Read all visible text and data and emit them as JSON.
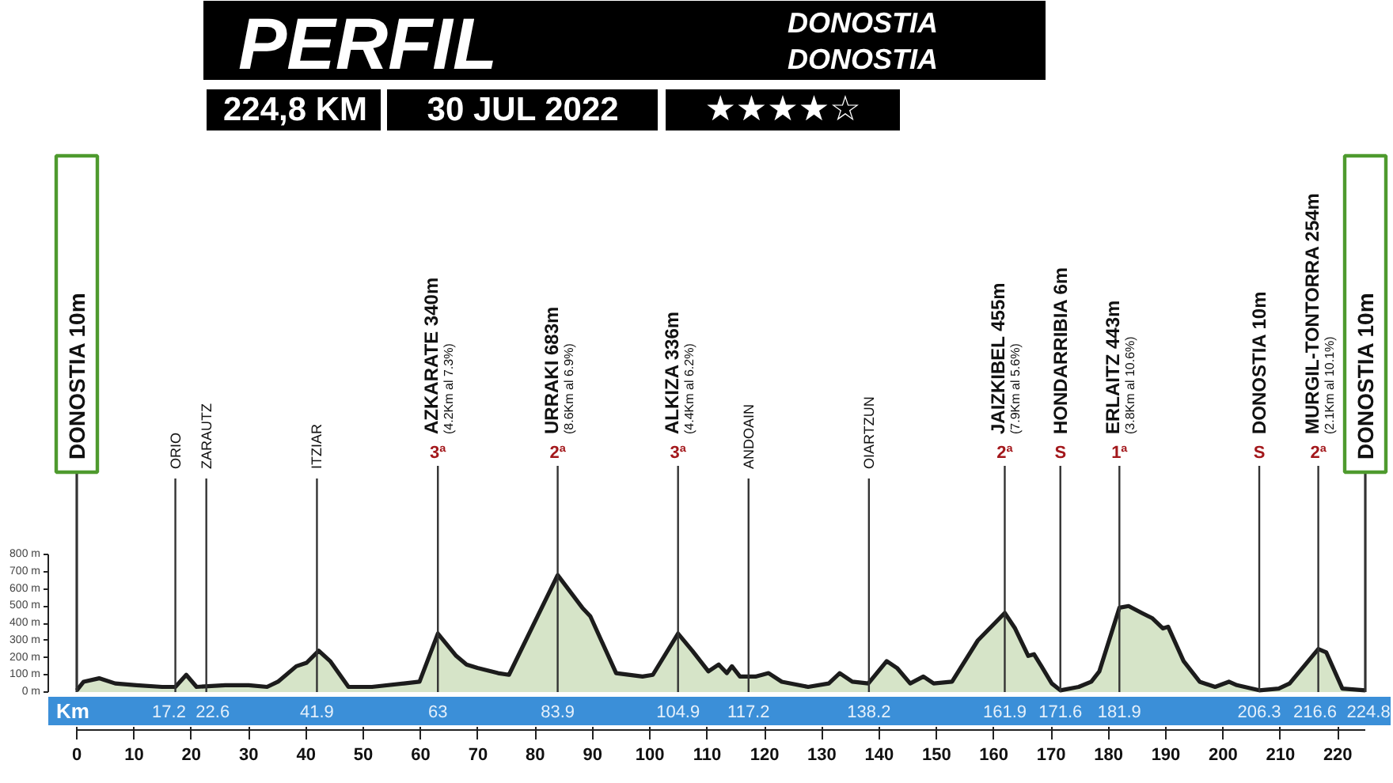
{
  "chart_data": {
    "type": "area",
    "title": "PERFIL",
    "x2label": "Km",
    "x": [
      0,
      1.2,
      3.9,
      6.7,
      10.4,
      14.9,
      17.2,
      19.1,
      20.9,
      25.9,
      30,
      33.2,
      35.1,
      38.3,
      40.1,
      42.2,
      44.2,
      47.4,
      51.5,
      57.1,
      59.8,
      63,
      66.2,
      68,
      69.9,
      73.5,
      75.4,
      83.9,
      88.2,
      89.6,
      94.1,
      98.7,
      100.5,
      104.9,
      107.4,
      110.2,
      112,
      113.4,
      114.3,
      115.7,
      118.4,
      120.7,
      123,
      127.6,
      131.2,
      133.1,
      135.3,
      138.1,
      141.3,
      143.1,
      145.4,
      147.7,
      149.5,
      152.7,
      157.2,
      161.9,
      163.7,
      166,
      167,
      168.3,
      170.1,
      171.6,
      174.8,
      177,
      178.4,
      181.9,
      183.5,
      185.8,
      187.6,
      189.5,
      190.4,
      193.1,
      195.9,
      198.6,
      201,
      202.4,
      206.3,
      209.7,
      211.6,
      216.6,
      218,
      220.8,
      224.8
    ],
    "series": [
      {
        "color": "#d6e4c8",
        "values": [
          10,
          60,
          80,
          50,
          40,
          30,
          30,
          100,
          30,
          40,
          40,
          30,
          60,
          150,
          170,
          240,
          180,
          30,
          30,
          50,
          60,
          340,
          210,
          160,
          140,
          110,
          100,
          680,
          490,
          440,
          110,
          90,
          100,
          340,
          240,
          120,
          160,
          110,
          150,
          90,
          90,
          110,
          60,
          30,
          50,
          110,
          60,
          50,
          180,
          140,
          50,
          90,
          50,
          60,
          300,
          460,
          370,
          210,
          220,
          150,
          50,
          10,
          30,
          60,
          120,
          490,
          500,
          460,
          430,
          370,
          380,
          180,
          60,
          30,
          60,
          40,
          10,
          20,
          50,
          250,
          230,
          20,
          10
        ]
      }
    ],
    "xlim": [
      0,
      224.8
    ],
    "xticks": [
      0,
      10,
      20,
      30,
      40,
      50,
      60,
      70,
      80,
      90,
      100,
      110,
      120,
      130,
      140,
      150,
      160,
      170,
      180,
      190,
      200,
      210,
      220
    ],
    "x2lim": [
      0,
      224.8
    ],
    "x2ticks": [
      17.2,
      22.6,
      41.9,
      63,
      83.9,
      104.9,
      117.2,
      138.2,
      161.9,
      171.6,
      181.9,
      206.3,
      216.6,
      224.8
    ],
    "ylim": [
      0,
      800
    ],
    "yticks": [
      {
        "value": 0,
        "label": "0 m"
      },
      {
        "value": 100,
        "label": "100 m"
      },
      {
        "value": 200,
        "label": "200 m"
      },
      {
        "value": 300,
        "label": "300 m"
      },
      {
        "value": 400,
        "label": "400 m"
      },
      {
        "value": 500,
        "label": "500 m"
      },
      {
        "value": 600,
        "label": "600 m"
      },
      {
        "value": 700,
        "label": "700 m"
      },
      {
        "value": 800,
        "label": "800 m"
      }
    ],
    "ref_lines": [
      {
        "axis": "x",
        "value": 0,
        "label": "DONOSTIA 10m"
      },
      {
        "axis": "x",
        "value": 17.2,
        "label": "ORIO"
      },
      {
        "axis": "x",
        "value": 22.6,
        "label": "ZARAUTZ"
      },
      {
        "axis": "x",
        "value": 41.9,
        "label": "ITZIAR"
      },
      {
        "axis": "x",
        "value": 63,
        "label": "3ª\nAZKARATE 340m\n(4.2Km al 7.3%)"
      },
      {
        "axis": "x",
        "value": 83.9,
        "label": "2ª\nURRAKI 683m\n(8.6Km al 6.9%)"
      },
      {
        "axis": "x",
        "value": 104.9,
        "label": "3ª\nALKIZA 336m\n(4.4Km al 6.2%)"
      },
      {
        "axis": "x",
        "value": 117.2,
        "label": "ANDOAIN"
      },
      {
        "axis": "x",
        "value": 138.2,
        "label": "OIARTZUN"
      },
      {
        "axis": "x",
        "value": 161.9,
        "label": "2ª\nJAIZKIBEL 455m\n(7.9Km al 5.6%)"
      },
      {
        "axis": "x",
        "value": 171.6,
        "label": "S\nHONDARRIBIA 6m"
      },
      {
        "axis": "x",
        "value": 181.9,
        "label": "1ª\nERLAITZ 443m\n(3.8Km al 10.6%)"
      },
      {
        "axis": "x",
        "value": 206.3,
        "label": "S\nDONOSTIA 10m"
      },
      {
        "axis": "x",
        "value": 216.6,
        "label": "2ª\nMURGIL-TONTORRA 254m\n(2.1Km al 10.1%)"
      },
      {
        "axis": "x",
        "value": 224.8,
        "label": "DONOSTIA 10m"
      }
    ],
    "annotations": [
      "DONOSTIA",
      "DONOSTIA",
      "224,8 KM",
      "30 JUL 2022",
      "★★★★☆"
    ]
  }
}
